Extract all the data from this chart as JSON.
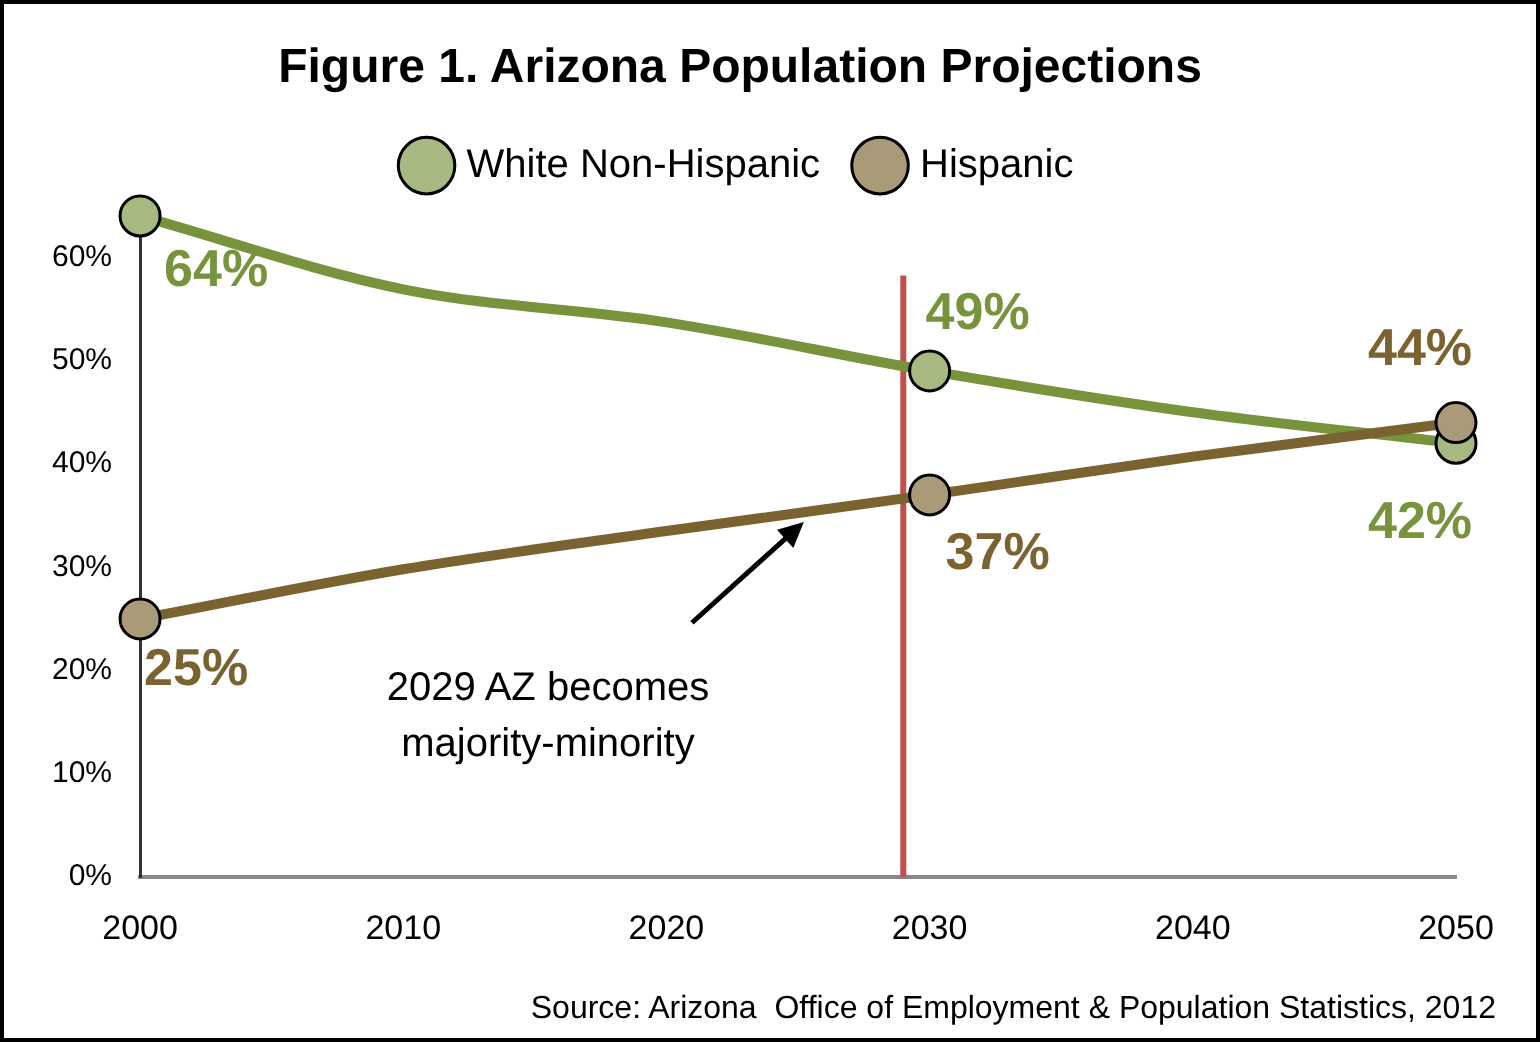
{
  "chart_data": {
    "type": "line",
    "title": "Figure 1. Arizona Population Projections",
    "x": [
      2000,
      2010,
      2020,
      2030,
      2040,
      2050
    ],
    "series": [
      {
        "name": "White Non-Hispanic",
        "color": "#77933c",
        "values": [
          64,
          56.9,
          53.7,
          49,
          45,
          42
        ],
        "value_labels": [
          "64%",
          null,
          null,
          "49%",
          null,
          "42%"
        ]
      },
      {
        "name": "Hispanic",
        "color": "#7a6330",
        "values": [
          25,
          29.8,
          33.5,
          37,
          40.7,
          44
        ],
        "value_labels": [
          "25%",
          null,
          null,
          "37%",
          null,
          "44%"
        ]
      }
    ],
    "xlim": [
      2000,
      2050
    ],
    "xticks": [
      2000,
      2010,
      2020,
      2030,
      2040,
      2050
    ],
    "ylim": [
      0,
      65
    ],
    "yticks": [
      {
        "value": 0,
        "label": "0%"
      },
      {
        "value": 10,
        "label": "10%"
      },
      {
        "value": 20,
        "label": "20%"
      },
      {
        "value": 30,
        "label": "30%"
      },
      {
        "value": 40,
        "label": "40%"
      },
      {
        "value": 50,
        "label": "50%"
      },
      {
        "value": 60,
        "label": "60%"
      }
    ],
    "ref_lines": [
      {
        "axis": "x",
        "value": 2029,
        "color": "#c0504d"
      }
    ],
    "annotations": [
      "2029 AZ becomes majority-minority",
      "Source: Arizona  Office of Employment & Population Statistics, 2012"
    ],
    "grid": false,
    "legend": "top",
    "marker": "circle",
    "line_style": "solid"
  }
}
